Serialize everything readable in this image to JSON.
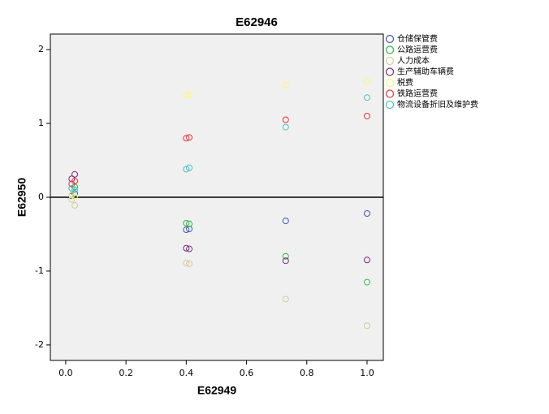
{
  "chart_data": {
    "type": "scatter",
    "title": "E62946",
    "x_label": "E62949",
    "y_label": "E62950",
    "xlim": [
      -0.051,
      1.054
    ],
    "ylim": [
      -2.21,
      2.21
    ],
    "xticks": [
      {
        "value": 0,
        "label": "0.0"
      },
      0.2,
      0.4,
      0.6,
      0.8,
      {
        "value": 1,
        "label": "1.0"
      }
    ],
    "yticks": [
      -2,
      -1,
      0,
      1,
      2
    ],
    "reference_line_y": 0,
    "series": [
      {
        "name": "仓储保管费",
        "color": "#3e58ac",
        "x": [
          0.02,
          0.03,
          0.4,
          0.41,
          0.73,
          1.0
        ],
        "values": [
          0.02,
          0.05,
          -0.44,
          -0.43,
          -0.32,
          -0.22
        ]
      },
      {
        "name": "公路运营费",
        "color": "#2eb848",
        "x": [
          0.02,
          0.03,
          0.4,
          0.41,
          0.73,
          1.0
        ],
        "values": [
          0.12,
          0.14,
          -0.35,
          -0.36,
          -0.8,
          -1.15
        ]
      },
      {
        "name": "人力成本",
        "color": "#d3ce97",
        "x": [
          0.02,
          0.03,
          0.4,
          0.41,
          0.73,
          1.0
        ],
        "values": [
          -0.03,
          -0.11,
          -0.89,
          -0.9,
          -1.38,
          -1.74
        ]
      },
      {
        "name": "生产辅助车辆费",
        "color": "#7c287d",
        "x": [
          0.02,
          0.03,
          0.4,
          0.41,
          0.73,
          1.0
        ],
        "values": [
          0.25,
          0.31,
          -0.69,
          -0.7,
          -0.86,
          -0.85
        ]
      },
      {
        "name": "税费",
        "color": "#fbf873",
        "x": [
          0.02,
          0.03,
          0.4,
          0.41,
          0.73,
          1.0
        ],
        "values": [
          0.03,
          0.01,
          1.38,
          1.39,
          1.52,
          1.57
        ]
      },
      {
        "name": "铁路运营费",
        "color": "#ef3338",
        "x": [
          0.02,
          0.03,
          0.4,
          0.41,
          0.73,
          1.0
        ],
        "values": [
          0.18,
          0.22,
          0.8,
          0.81,
          1.05,
          1.1
        ]
      },
      {
        "name": "物流设备折旧及维护费",
        "color": "#48c2c5",
        "x": [
          0.02,
          0.03,
          0.4,
          0.41,
          0.73,
          1.0
        ],
        "values": [
          0.12,
          0.1,
          0.38,
          0.4,
          0.95,
          1.35
        ]
      }
    ]
  }
}
